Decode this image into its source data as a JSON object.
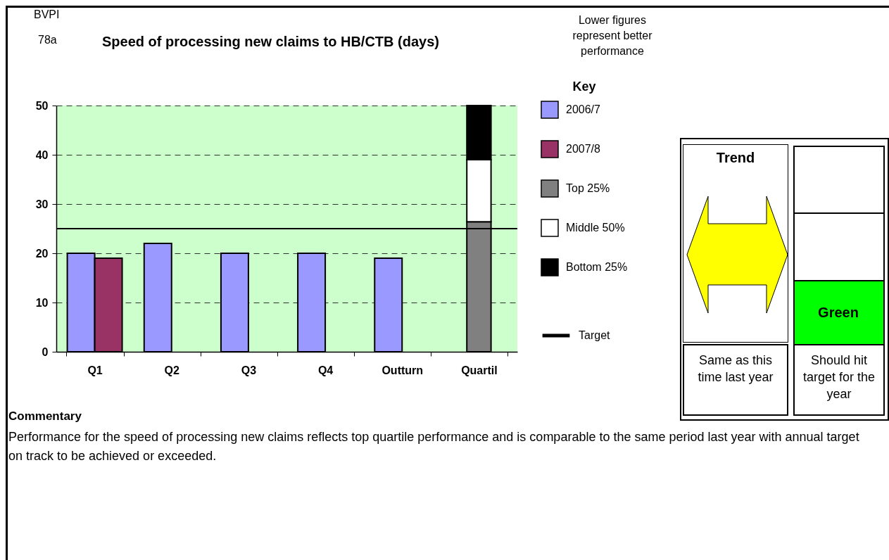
{
  "chart_data": {
    "type": "bar",
    "title": "Speed of processing new claims to HB/CTB (days)",
    "legend_title": "Key",
    "categories": [
      "Q1",
      "Q2",
      "Q3",
      "Q4",
      "Outturn",
      "Quartil"
    ],
    "series": [
      {
        "name": "2006/7",
        "color": "#9999ff",
        "values": [
          20,
          22,
          20,
          20,
          19,
          null
        ]
      },
      {
        "name": "2007/8",
        "color": "#993366",
        "values": [
          19,
          null,
          null,
          null,
          null,
          null
        ]
      },
      {
        "name": "Top 25%",
        "color": "#808080",
        "values": [
          null,
          null,
          null,
          null,
          null,
          26.4
        ]
      },
      {
        "name": "Middle 50%",
        "color": "#ffffff",
        "values": [
          null,
          null,
          null,
          null,
          null,
          12.6
        ],
        "base": [
          null,
          null,
          null,
          null,
          null,
          26.4
        ]
      },
      {
        "name": "Bottom 25%",
        "color": "#000000",
        "values": [
          null,
          null,
          null,
          null,
          null,
          11
        ],
        "base": [
          null,
          null,
          null,
          null,
          null,
          39
        ]
      }
    ],
    "ref_lines": [
      {
        "axis": "y",
        "value": 25,
        "label": "Target",
        "color": "#000000"
      }
    ],
    "ylim": [
      0,
      50
    ],
    "yticks": [
      0,
      10,
      20,
      30,
      40,
      50
    ],
    "grid": "y",
    "legend": "right",
    "annotations": [
      "BVPI",
      "78a",
      "Lower figures represent better performance",
      "Trend",
      "Same as this time last year",
      "Green",
      "Should hit target for the year",
      "Commentary",
      "Performance for the speed of processing new claims reflects top quartile performance and is comparable to the same period last year with annual target on track to be achieved or exceeded."
    ]
  }
}
